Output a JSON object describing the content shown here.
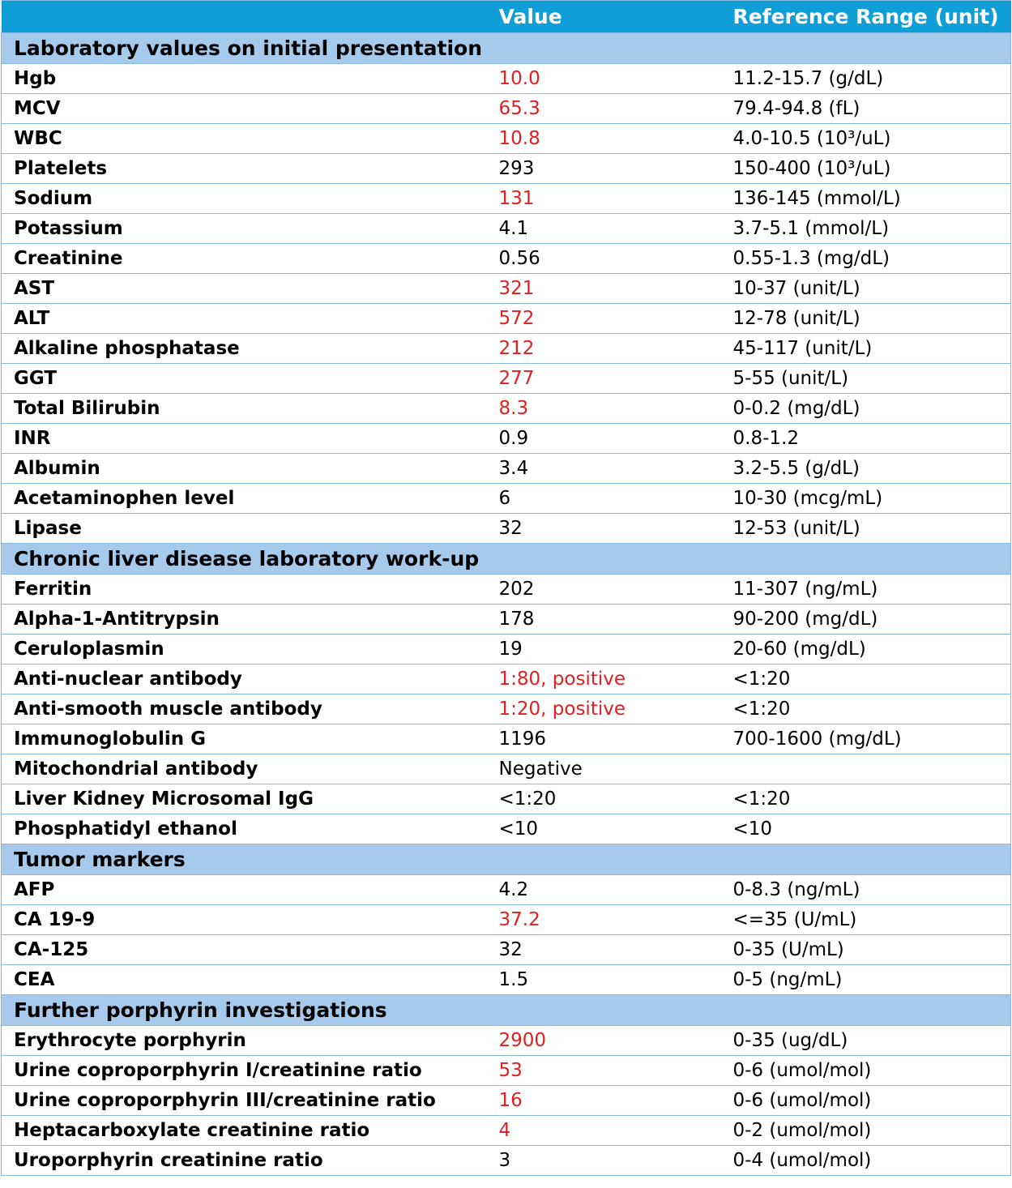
{
  "headers": [
    "",
    "Value",
    "Reference Range (unit)"
  ],
  "colors": {
    "header_bg": "#0f9ed5",
    "section_bg": "#a6caec",
    "abnormal": "#e02020",
    "border": "#8bb8e0"
  },
  "sections": [
    {
      "title": "Laboratory values on initial presentation",
      "rows": [
        {
          "name": "Hgb",
          "value": "10.0",
          "abnormal": true,
          "ref": "11.2-15.7 (g/dL)"
        },
        {
          "name": "MCV",
          "value": "65.3",
          "abnormal": true,
          "ref": "79.4-94.8 (fL)"
        },
        {
          "name": "WBC",
          "value": "10.8",
          "abnormal": true,
          "ref": "4.0-10.5 (10³/uL)"
        },
        {
          "name": "Platelets",
          "value": "293",
          "abnormal": false,
          "ref": "150-400 (10³/uL)"
        },
        {
          "name": "Sodium",
          "value": "131",
          "abnormal": true,
          "ref": "136-145 (mmol/L)"
        },
        {
          "name": "Potassium",
          "value": "4.1",
          "abnormal": false,
          "ref": "3.7-5.1 (mmol/L)"
        },
        {
          "name": "Creatinine",
          "value": "0.56",
          "abnormal": false,
          "ref": "0.55-1.3 (mg/dL)"
        },
        {
          "name": "AST",
          "value": "321",
          "abnormal": true,
          "ref": "10-37 (unit/L)"
        },
        {
          "name": "ALT",
          "value": "572",
          "abnormal": true,
          "ref": "12-78 (unit/L)"
        },
        {
          "name": "Alkaline phosphatase",
          "value": "212",
          "abnormal": true,
          "ref": "45-117 (unit/L)"
        },
        {
          "name": "GGT",
          "value": "277",
          "abnormal": true,
          "ref": "5-55 (unit/L)"
        },
        {
          "name": "Total Bilirubin",
          "value": "8.3",
          "abnormal": true,
          "ref": "0-0.2 (mg/dL)"
        },
        {
          "name": "INR",
          "value": "0.9",
          "abnormal": false,
          "ref": "0.8-1.2"
        },
        {
          "name": "Albumin",
          "value": "3.4",
          "abnormal": false,
          "ref": "3.2-5.5 (g/dL)"
        },
        {
          "name": "Acetaminophen level",
          "value": "6",
          "abnormal": false,
          "ref": "10-30 (mcg/mL)"
        },
        {
          "name": "Lipase",
          "value": "32",
          "abnormal": false,
          "ref": "12-53 (unit/L)"
        }
      ]
    },
    {
      "title": "Chronic liver disease laboratory work-up",
      "rows": [
        {
          "name": "Ferritin",
          "value": "202",
          "abnormal": false,
          "ref": "11-307 (ng/mL)"
        },
        {
          "name": "Alpha-1-Antitrypsin",
          "value": "178",
          "abnormal": false,
          "ref": "90-200 (mg/dL)"
        },
        {
          "name": "Ceruloplasmin",
          "value": "19",
          "abnormal": false,
          "ref": "20-60 (mg/dL)"
        },
        {
          "name": "Anti-nuclear antibody",
          "value": "1:80, positive",
          "abnormal": true,
          "ref": "<1:20"
        },
        {
          "name": "Anti-smooth muscle antibody",
          "value": "1:20, positive",
          "abnormal": true,
          "ref": "<1:20"
        },
        {
          "name": "Immunoglobulin G",
          "value": "1196",
          "abnormal": false,
          "ref": "700-1600 (mg/dL)"
        },
        {
          "name": "Mitochondrial antibody",
          "value": "Negative",
          "abnormal": false,
          "ref": ""
        },
        {
          "name": "Liver Kidney Microsomal IgG",
          "value": "<1:20",
          "abnormal": false,
          "ref": "<1:20"
        },
        {
          "name": "Phosphatidyl ethanol",
          "value": "<10",
          "abnormal": false,
          "ref": "<10"
        }
      ]
    },
    {
      "title": "Tumor markers",
      "rows": [
        {
          "name": "AFP",
          "value": "4.2",
          "abnormal": false,
          "ref": "0-8.3 (ng/mL)"
        },
        {
          "name": "CA 19-9",
          "value": "37.2",
          "abnormal": true,
          "ref": "<=35 (U/mL)"
        },
        {
          "name": "CA-125",
          "value": "32",
          "abnormal": false,
          "ref": "0-35 (U/mL)"
        },
        {
          "name": "CEA",
          "value": "1.5",
          "abnormal": false,
          "ref": "0-5 (ng/mL)"
        }
      ]
    },
    {
      "title": "Further porphyrin investigations",
      "rows": [
        {
          "name": "Erythrocyte porphyrin",
          "value": "2900",
          "abnormal": true,
          "ref": "0-35 (ug/dL)"
        },
        {
          "name": "Urine coproporphyrin I/creatinine ratio",
          "value": "53",
          "abnormal": true,
          "ref": "0-6 (umol/mol)"
        },
        {
          "name": "Urine coproporphyrin III/creatinine ratio",
          "value": "16",
          "abnormal": true,
          "ref": "0-6 (umol/mol)"
        },
        {
          "name": "Heptacarboxylate creatinine ratio",
          "value": "4",
          "abnormal": true,
          "ref": "0-2 (umol/mol)"
        },
        {
          "name": "Uroporphyrin creatinine ratio",
          "value": "3",
          "abnormal": false,
          "ref": "0-4 (umol/mol)"
        }
      ]
    }
  ]
}
